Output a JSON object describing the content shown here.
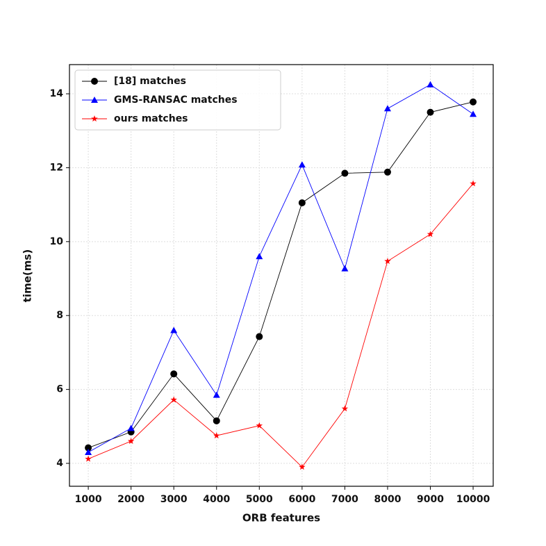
{
  "chart_data": {
    "type": "line",
    "x": [
      1000,
      2000,
      3000,
      4000,
      5000,
      6000,
      7000,
      8000,
      9000,
      10000
    ],
    "series": [
      {
        "name": "[18] matches",
        "color": "#000000",
        "marker": "circle",
        "values": [
          4.42,
          4.85,
          6.42,
          5.15,
          7.43,
          11.05,
          11.85,
          11.88,
          13.5,
          13.78
        ]
      },
      {
        "name": "GMS-RANSAC matches",
        "color": "#0000ff",
        "marker": "triangle",
        "values": [
          4.3,
          4.95,
          7.6,
          5.85,
          9.6,
          12.08,
          9.27,
          13.6,
          14.25,
          13.45
        ]
      },
      {
        "name": "ours matches",
        "color": "#ff0000",
        "marker": "star",
        "values": [
          4.12,
          4.6,
          5.72,
          4.75,
          5.02,
          3.9,
          5.48,
          9.47,
          10.2,
          11.57
        ]
      }
    ],
    "xlabel": "ORB features",
    "ylabel": "time(ms)",
    "xlim": [
      560,
      10470
    ],
    "ylim": [
      3.38,
      14.79
    ],
    "xticks": [
      1000,
      2000,
      3000,
      4000,
      5000,
      6000,
      7000,
      8000,
      9000,
      10000
    ],
    "yticks": [
      4,
      6,
      8,
      10,
      12,
      14
    ],
    "grid": true,
    "legend": "upper left"
  }
}
